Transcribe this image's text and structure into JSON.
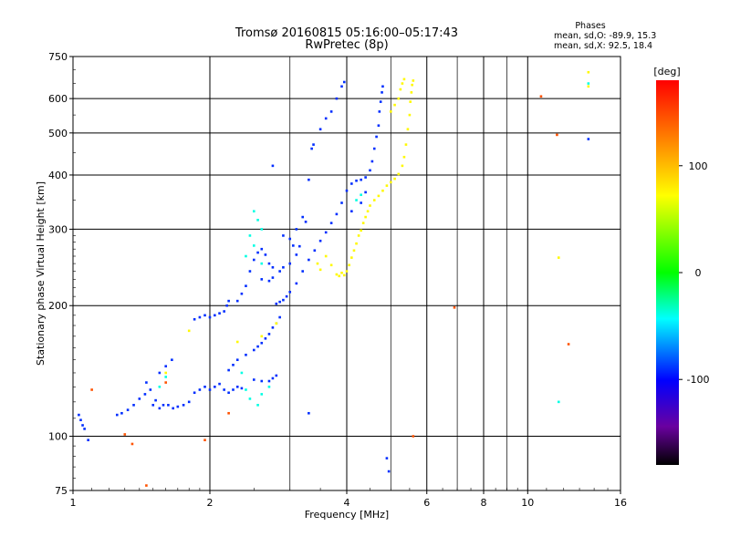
{
  "chart_data": {
    "type": "scatter",
    "title": "Tromsø 20160815 05:16:00–05:17:43",
    "subtitle": "RwPretec (8p)",
    "xlabel": "Frequency [MHz]",
    "ylabel": "Stationary phase Virtual Height [km]",
    "xscale": "log",
    "yscale": "log",
    "xlim": [
      1,
      16
    ],
    "ylim": [
      75,
      750
    ],
    "xticks": [
      1,
      2,
      4,
      6,
      8,
      10,
      16
    ],
    "xtick_labels": [
      "1",
      "2",
      "4",
      "6",
      "8",
      "10",
      "16"
    ],
    "yticks": [
      75,
      100,
      200,
      300,
      400,
      500,
      600,
      750
    ],
    "ytick_labels": [
      "75",
      "100",
      "200",
      "300",
      "400",
      "500",
      "600",
      "750"
    ],
    "grid": true,
    "stats": {
      "heading": "Phases",
      "line_o": "mean, sd,O: -89.9, 15.3",
      "line_x": "mean, sd,X:  92.5, 18.4"
    },
    "colorbar": {
      "label": "[deg]",
      "range": [
        -180,
        180
      ],
      "ticks": [
        100,
        0,
        -100
      ],
      "tick_labels": [
        "100",
        "0",
        "-100"
      ]
    },
    "series": [
      {
        "name": "O-mode trace (blue)",
        "phase_deg": -90,
        "points": [
          [
            1.04,
            109
          ],
          [
            1.05,
            106
          ],
          [
            1.06,
            104
          ],
          [
            1.03,
            112
          ],
          [
            1.25,
            112
          ],
          [
            1.28,
            113
          ],
          [
            1.32,
            115
          ],
          [
            1.36,
            118
          ],
          [
            1.4,
            122
          ],
          [
            1.44,
            125
          ],
          [
            1.48,
            128
          ],
          [
            1.5,
            118
          ],
          [
            1.52,
            121
          ],
          [
            1.55,
            116
          ],
          [
            1.58,
            118
          ],
          [
            1.62,
            118
          ],
          [
            1.66,
            116
          ],
          [
            1.7,
            117
          ],
          [
            1.75,
            118
          ],
          [
            1.8,
            120
          ],
          [
            1.85,
            126
          ],
          [
            1.9,
            128
          ],
          [
            1.95,
            130
          ],
          [
            2.0,
            128
          ],
          [
            2.05,
            130
          ],
          [
            2.1,
            132
          ],
          [
            2.15,
            128
          ],
          [
            2.2,
            126
          ],
          [
            2.25,
            128
          ],
          [
            2.3,
            130
          ],
          [
            2.35,
            129
          ],
          [
            1.85,
            186
          ],
          [
            1.9,
            188
          ],
          [
            1.95,
            190
          ],
          [
            2.0,
            188
          ],
          [
            2.05,
            190
          ],
          [
            2.1,
            192
          ],
          [
            2.15,
            194
          ],
          [
            2.18,
            200
          ],
          [
            2.2,
            205
          ],
          [
            2.3,
            205
          ],
          [
            2.35,
            213
          ],
          [
            2.4,
            222
          ],
          [
            2.45,
            240
          ],
          [
            2.5,
            255
          ],
          [
            2.55,
            265
          ],
          [
            2.6,
            270
          ],
          [
            2.65,
            262
          ],
          [
            2.7,
            250
          ],
          [
            2.75,
            245
          ],
          [
            2.8,
            202
          ],
          [
            2.85,
            204
          ],
          [
            2.9,
            206
          ],
          [
            2.95,
            210
          ],
          [
            3.0,
            215
          ],
          [
            3.1,
            225
          ],
          [
            3.2,
            240
          ],
          [
            3.3,
            255
          ],
          [
            3.4,
            268
          ],
          [
            3.5,
            282
          ],
          [
            3.6,
            295
          ],
          [
            3.7,
            310
          ],
          [
            3.8,
            325
          ],
          [
            3.9,
            345
          ],
          [
            4.0,
            368
          ],
          [
            4.1,
            382
          ],
          [
            4.2,
            388
          ],
          [
            4.3,
            390
          ],
          [
            4.4,
            395
          ],
          [
            4.5,
            410
          ],
          [
            4.55,
            430
          ],
          [
            4.6,
            460
          ],
          [
            4.65,
            490
          ],
          [
            4.7,
            520
          ],
          [
            4.72,
            560
          ],
          [
            4.75,
            590
          ],
          [
            4.78,
            620
          ],
          [
            4.8,
            640
          ],
          [
            2.6,
            230
          ],
          [
            2.7,
            228
          ],
          [
            2.75,
            232
          ],
          [
            2.85,
            240
          ],
          [
            2.9,
            245
          ],
          [
            3.0,
            250
          ],
          [
            3.1,
            262
          ],
          [
            3.15,
            274
          ],
          [
            3.35,
            460
          ],
          [
            3.38,
            470
          ],
          [
            3.5,
            510
          ],
          [
            3.6,
            540
          ],
          [
            3.7,
            560
          ],
          [
            3.8,
            600
          ],
          [
            3.9,
            640
          ],
          [
            3.95,
            655
          ],
          [
            2.6,
            164
          ],
          [
            2.65,
            168
          ],
          [
            2.7,
            172
          ],
          [
            2.75,
            178
          ],
          [
            2.8,
            182
          ],
          [
            2.85,
            188
          ],
          [
            2.2,
            142
          ],
          [
            2.25,
            146
          ],
          [
            2.3,
            150
          ],
          [
            2.4,
            154
          ],
          [
            2.5,
            158
          ],
          [
            2.55,
            161
          ],
          [
            2.5,
            135
          ],
          [
            2.6,
            134
          ],
          [
            2.7,
            134
          ],
          [
            2.75,
            136
          ],
          [
            2.8,
            138
          ],
          [
            3.2,
            320
          ],
          [
            3.25,
            312
          ],
          [
            3.1,
            300
          ],
          [
            2.9,
            290
          ],
          [
            3.0,
            285
          ],
          [
            3.05,
            275
          ],
          [
            2.75,
            420
          ],
          [
            3.3,
            390
          ],
          [
            4.1,
            330
          ],
          [
            4.3,
            345
          ],
          [
            4.4,
            365
          ],
          [
            1.45,
            133
          ],
          [
            1.55,
            140
          ],
          [
            1.6,
            145
          ],
          [
            1.65,
            150
          ],
          [
            1.08,
            98
          ],
          [
            4.9,
            89
          ],
          [
            4.95,
            83
          ],
          [
            3.3,
            113
          ],
          [
            13.6,
            484
          ]
        ]
      },
      {
        "name": "X-mode trace (yellow)",
        "phase_deg": 92,
        "points": [
          [
            3.8,
            236
          ],
          [
            3.85,
            234
          ],
          [
            3.9,
            238
          ],
          [
            3.95,
            235
          ],
          [
            4.0,
            240
          ],
          [
            4.05,
            248
          ],
          [
            4.1,
            258
          ],
          [
            4.15,
            268
          ],
          [
            4.2,
            278
          ],
          [
            4.25,
            290
          ],
          [
            4.3,
            298
          ],
          [
            4.35,
            310
          ],
          [
            4.4,
            320
          ],
          [
            4.45,
            330
          ],
          [
            4.5,
            340
          ],
          [
            4.6,
            350
          ],
          [
            4.7,
            358
          ],
          [
            4.8,
            368
          ],
          [
            4.9,
            378
          ],
          [
            5.0,
            385
          ],
          [
            5.1,
            392
          ],
          [
            5.2,
            402
          ],
          [
            5.3,
            420
          ],
          [
            5.35,
            440
          ],
          [
            5.4,
            470
          ],
          [
            5.45,
            510
          ],
          [
            5.5,
            550
          ],
          [
            5.52,
            590
          ],
          [
            5.55,
            620
          ],
          [
            5.57,
            645
          ],
          [
            5.6,
            660
          ],
          [
            5.0,
            560
          ],
          [
            5.1,
            580
          ],
          [
            5.2,
            600
          ],
          [
            5.25,
            630
          ],
          [
            5.3,
            650
          ],
          [
            5.35,
            665
          ],
          [
            3.6,
            260
          ],
          [
            3.7,
            248
          ],
          [
            3.5,
            242
          ],
          [
            3.45,
            250
          ],
          [
            2.8,
            182
          ],
          [
            2.6,
            170
          ],
          [
            2.3,
            165
          ],
          [
            1.6,
            140
          ],
          [
            1.8,
            175
          ],
          [
            13.6,
            690
          ],
          [
            13.6,
            640
          ],
          [
            11.7,
            258
          ]
        ]
      },
      {
        "name": "Cyan returns",
        "phase_deg": -40,
        "points": [
          [
            2.5,
            330
          ],
          [
            2.55,
            315
          ],
          [
            2.6,
            300
          ],
          [
            2.45,
            290
          ],
          [
            2.5,
            275
          ],
          [
            2.4,
            260
          ],
          [
            2.6,
            250
          ],
          [
            2.35,
            140
          ],
          [
            2.4,
            128
          ],
          [
            2.45,
            122
          ],
          [
            2.55,
            118
          ],
          [
            2.6,
            125
          ],
          [
            2.7,
            130
          ],
          [
            1.55,
            130
          ],
          [
            1.6,
            137
          ],
          [
            4.2,
            350
          ],
          [
            4.3,
            360
          ],
          [
            13.6,
            650
          ],
          [
            11.7,
            120
          ]
        ]
      },
      {
        "name": "Scattered red/orange/green",
        "phase_deg": 150,
        "points": [
          [
            1.1,
            128
          ],
          [
            1.6,
            133
          ],
          [
            1.35,
            96
          ],
          [
            2.2,
            113
          ],
          [
            6.9,
            198
          ],
          [
            10.7,
            607
          ],
          [
            11.6,
            495
          ],
          [
            12.3,
            163
          ],
          [
            5.6,
            100
          ],
          [
            1.45,
            77
          ],
          [
            1.3,
            101
          ],
          [
            1.95,
            98
          ]
        ]
      }
    ]
  }
}
